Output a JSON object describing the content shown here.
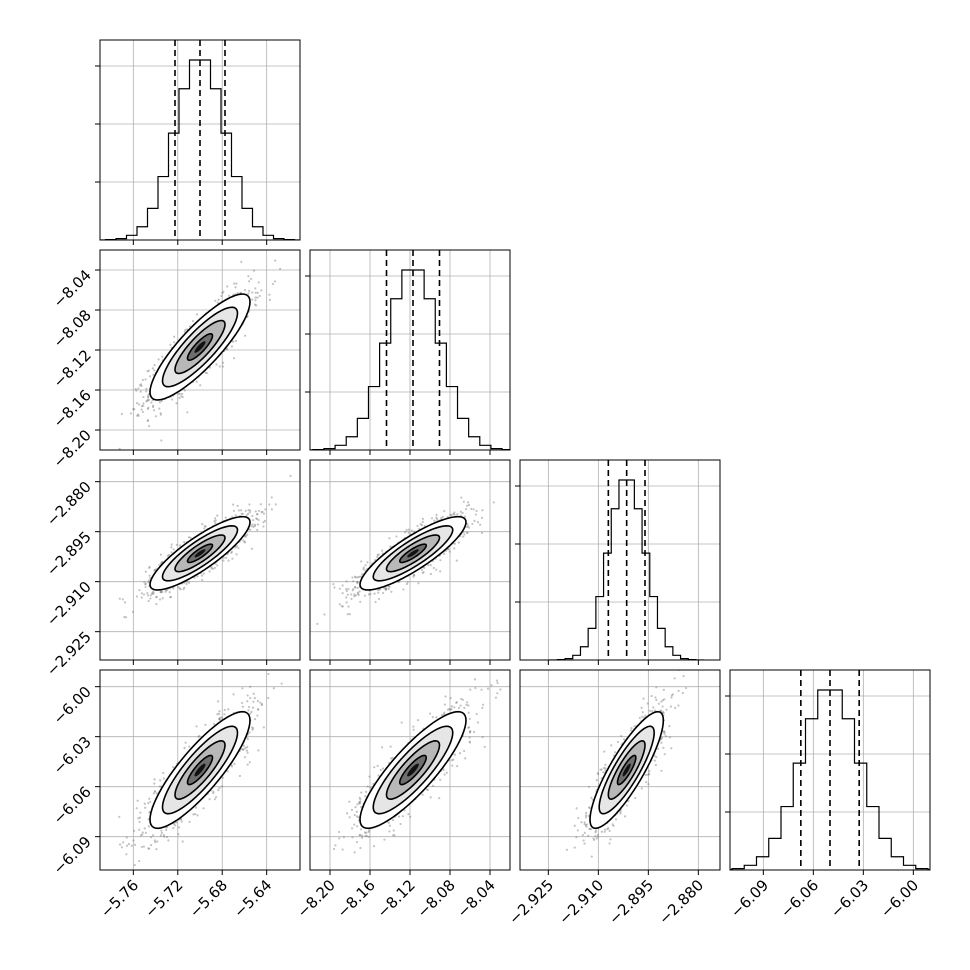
{
  "chart_data": {
    "type": "corner",
    "title": "",
    "parameters": [
      {
        "index": 0,
        "median": -5.7,
        "sigma": 0.0225,
        "quantiles": [
          -5.7225,
          -5.7,
          -5.6775
        ],
        "range": [
          -5.79,
          -5.61
        ],
        "ticks": [
          -5.76,
          -5.72,
          -5.68,
          -5.64
        ],
        "tick_labels": [
          "−5.76",
          "−5.72",
          "−5.68",
          "−5.64"
        ]
      },
      {
        "index": 1,
        "median": -8.117,
        "sigma": 0.0265,
        "quantiles": [
          -8.1435,
          -8.117,
          -8.0905
        ],
        "range": [
          -8.22,
          -8.02
        ],
        "ticks": [
          -8.2,
          -8.16,
          -8.12,
          -8.08,
          -8.04
        ],
        "tick_labels": [
          "−8.20",
          "−8.16",
          "−8.12",
          "−8.08",
          "−8.04"
        ]
      },
      {
        "index": 2,
        "median": -2.9015,
        "sigma": 0.0055,
        "quantiles": [
          -2.907,
          -2.9015,
          -2.896
        ],
        "range": [
          -2.9335,
          -2.8735
        ],
        "ticks": [
          -2.925,
          -2.91,
          -2.895,
          -2.88
        ],
        "tick_labels": [
          "−2.925",
          "−2.910",
          "−2.895",
          "−2.880"
        ]
      },
      {
        "index": 3,
        "median": -6.05,
        "sigma": 0.0175,
        "quantiles": [
          -6.0675,
          -6.05,
          -6.0325
        ],
        "range": [
          -6.11,
          -5.99
        ],
        "ticks": [
          -6.09,
          -6.06,
          -6.03,
          -6.0
        ],
        "tick_labels": [
          "−6.09",
          "−6.06",
          "−6.03",
          "−6.00"
        ]
      }
    ],
    "correlation": 0.85,
    "contour_levels_sigma": [
      0.5,
      1.0,
      1.5,
      2.0
    ],
    "histogram_bins": 20,
    "grid": true
  }
}
